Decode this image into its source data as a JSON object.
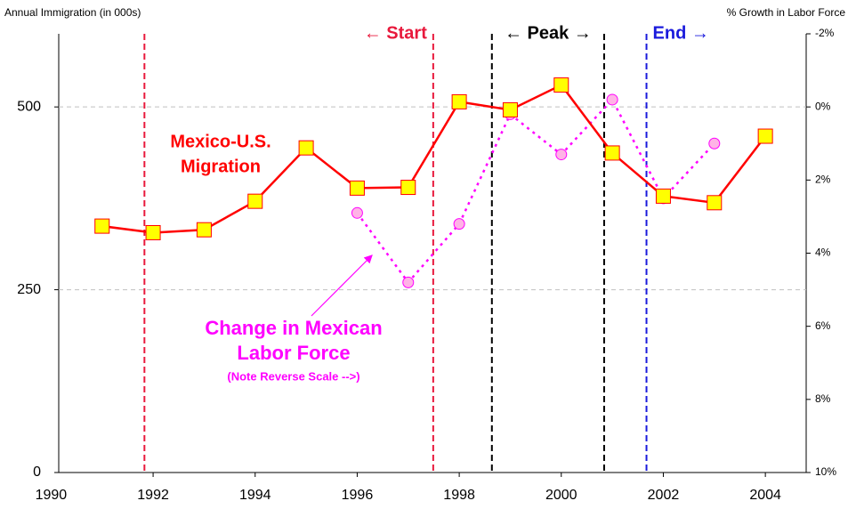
{
  "chart_data": {
    "type": "line",
    "y_label": "Annual Immigration (in 000s)",
    "y2_label": "% Growth in Labor Force",
    "xlim": [
      1990.15,
      2004.8
    ],
    "xticks": [
      1990,
      1992,
      1994,
      1996,
      1998,
      2000,
      2002,
      2004
    ],
    "ylim": [
      0,
      600
    ],
    "yticks": [
      0,
      250,
      500
    ],
    "y2lim": [
      10,
      -2
    ],
    "y2ticks": [
      {
        "value": -2,
        "label": "-2%"
      },
      {
        "value": 0,
        "label": "0%"
      },
      {
        "value": 2,
        "label": "2%"
      },
      {
        "value": 4,
        "label": "4%"
      },
      {
        "value": 6,
        "label": "6%"
      },
      {
        "value": 8,
        "label": "8%"
      },
      {
        "value": 10,
        "label": "10%"
      }
    ],
    "grid": true,
    "series": [
      {
        "color": "#ff0000",
        "marker_color": "#ffff00",
        "axis": "y",
        "x": [
          1991,
          1992,
          1993,
          1994,
          1995,
          1996,
          1997,
          1998,
          1999,
          2000,
          2001,
          2002,
          2003,
          2004
        ],
        "values": [
          337,
          328,
          332,
          371,
          444,
          389,
          390,
          507,
          496,
          530,
          437,
          378,
          369,
          460
        ]
      },
      {
        "color": "#ff00ff",
        "marker_color": "#ffb3e6",
        "axis": "y2",
        "x": [
          1996,
          1997,
          1998,
          1999,
          2000,
          2001,
          2002,
          2003
        ],
        "values": [
          2.9,
          4.8,
          3.2,
          0.2,
          1.3,
          -0.2,
          2.5,
          1.0
        ]
      }
    ],
    "reference_lines": [
      {
        "x": 1991.83,
        "color": "#e8193c"
      },
      {
        "x": 1997.49,
        "color": "#e8193c",
        "label": "← Start"
      },
      {
        "x": 1998.64,
        "color": "#000000"
      },
      {
        "x": 2000.84,
        "color": "#000000",
        "label": "← Peak →"
      },
      {
        "x": 2001.67,
        "color": "#1a1adc",
        "label": "End →"
      }
    ],
    "annotations": [
      {
        "text": "Mexico-U.S.",
        "color": "#ff0000"
      },
      {
        "text": "Migration",
        "color": "#ff0000"
      },
      {
        "text": "Change in Mexican",
        "color": "#ff00ff"
      },
      {
        "text": "Labor Force",
        "color": "#ff00ff"
      },
      {
        "text": "(Note Reverse Scale -->)",
        "color": "#ff00ff"
      }
    ]
  }
}
